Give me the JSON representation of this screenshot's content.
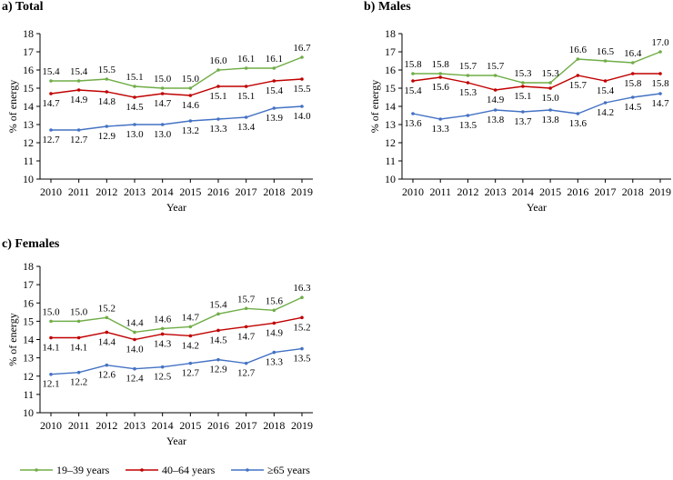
{
  "colors": {
    "19_39": "#70ad47",
    "40_64": "#c00000",
    "ge65": "#4472c4",
    "axis": "#000000"
  },
  "legend": [
    {
      "key": "19_39",
      "label": "19–39 years"
    },
    {
      "key": "40_64",
      "label": "40–64 years"
    },
    {
      "key": "ge65",
      "label": "≥65 years"
    }
  ],
  "chart_data": [
    {
      "type": "line",
      "title": "a) Total",
      "xlabel": "Year",
      "ylabel": "% of energy",
      "ylim": [
        10,
        18
      ],
      "yticks": [
        "10",
        "11",
        "12",
        "13",
        "14",
        "15",
        "16",
        "17",
        "18"
      ],
      "categories": [
        "2010",
        "2011",
        "2012",
        "2013",
        "2014",
        "2015",
        "2016",
        "2017",
        "2018",
        "2019"
      ],
      "grid": false,
      "series": [
        {
          "key": "19_39",
          "name": "19–39 years",
          "values": [
            15.4,
            15.4,
            15.5,
            15.1,
            15.0,
            15.0,
            16.0,
            16.1,
            16.1,
            16.7
          ],
          "labels": [
            "15.4",
            "15.4",
            "15.5",
            "15.1",
            "15.0",
            "15.0",
            "16.0",
            "16.1",
            "16.1",
            "16.7"
          ]
        },
        {
          "key": "40_64",
          "name": "40–64 years",
          "values": [
            14.7,
            14.9,
            14.8,
            14.5,
            14.7,
            14.6,
            15.1,
            15.1,
            15.4,
            15.5
          ],
          "labels": [
            "14.7",
            "14.9",
            "14.8",
            "14.5",
            "14.7",
            "14.6",
            "15.1",
            "15.1",
            "15.4",
            "15.5"
          ]
        },
        {
          "key": "ge65",
          "name": "≥65 years",
          "values": [
            12.7,
            12.7,
            12.9,
            13.0,
            13.0,
            13.2,
            13.3,
            13.4,
            13.9,
            14.0
          ],
          "labels": [
            "12.7",
            "12.7",
            "12.9",
            "13.0",
            "13.0",
            "13.2",
            "13.3",
            "13.4",
            "13.9",
            "14.0"
          ]
        }
      ]
    },
    {
      "type": "line",
      "title": "b) Males",
      "xlabel": "Year",
      "ylabel": "% of energy",
      "ylim": [
        10,
        18
      ],
      "yticks": [
        "10",
        "11",
        "12",
        "13",
        "14",
        "15",
        "16",
        "17",
        "18"
      ],
      "categories": [
        "2010",
        "2011",
        "2012",
        "2013",
        "2014",
        "2015",
        "2016",
        "2017",
        "2018",
        "2019"
      ],
      "grid": false,
      "series": [
        {
          "key": "19_39",
          "name": "19–39 years",
          "values": [
            15.8,
            15.8,
            15.7,
            15.7,
            15.3,
            15.3,
            16.6,
            16.5,
            16.4,
            17.0
          ],
          "labels": [
            "15.8",
            "15.8",
            "15.7",
            "15.7",
            "15.3",
            "15.3",
            "16.6",
            "16.5",
            "16.4",
            "17.0"
          ]
        },
        {
          "key": "40_64",
          "name": "40–64 years",
          "values": [
            15.4,
            15.6,
            15.3,
            14.9,
            15.1,
            15.0,
            15.7,
            15.4,
            15.8,
            15.8
          ],
          "labels": [
            "15.4",
            "15.6",
            "15.3",
            "14.9",
            "15.1",
            "15.0",
            "15.7",
            "15.4",
            "15.8",
            "15.8"
          ]
        },
        {
          "key": "ge65",
          "name": "≥65 years",
          "values": [
            13.6,
            13.3,
            13.5,
            13.8,
            13.7,
            13.8,
            13.6,
            14.2,
            14.5,
            14.7
          ],
          "labels": [
            "13.6",
            "13.3",
            "13.5",
            "13.8",
            "13.7",
            "13.8",
            "13.6",
            "14.2",
            "14.5",
            "14.7"
          ]
        }
      ]
    },
    {
      "type": "line",
      "title": "c) Females",
      "xlabel": "Year",
      "ylabel": "% of energy",
      "ylim": [
        10,
        18
      ],
      "yticks": [
        "10",
        "11",
        "12",
        "13",
        "14",
        "15",
        "16",
        "17",
        "18"
      ],
      "categories": [
        "2010",
        "2011",
        "2012",
        "2013",
        "2014",
        "2015",
        "2016",
        "2017",
        "2018",
        "2019"
      ],
      "grid": false,
      "series": [
        {
          "key": "19_39",
          "name": "19–39 years",
          "values": [
            15.0,
            15.0,
            15.2,
            14.4,
            14.6,
            14.7,
            15.4,
            15.7,
            15.6,
            16.3
          ],
          "labels": [
            "15.0",
            "15.0",
            "15.2",
            "14.4",
            "14.6",
            "14.7",
            "15.4",
            "15.7",
            "15.6",
            "16.3"
          ]
        },
        {
          "key": "40_64",
          "name": "40–64 years",
          "values": [
            14.1,
            14.1,
            14.4,
            14.0,
            14.3,
            14.2,
            14.5,
            14.7,
            14.9,
            15.2
          ],
          "labels": [
            "14.1",
            "14.1",
            "14.4",
            "14.0",
            "14.3",
            "14.2",
            "14.5",
            "14.7",
            "14.9",
            "15.2"
          ]
        },
        {
          "key": "ge65",
          "name": "≥65 years",
          "values": [
            12.1,
            12.2,
            12.6,
            12.4,
            12.5,
            12.7,
            12.9,
            12.7,
            13.3,
            13.5
          ],
          "labels": [
            "12.1",
            "12.2",
            "12.6",
            "12.4",
            "12.5",
            "12.7",
            "12.9",
            "12.7",
            "13.3",
            "13.5"
          ]
        }
      ]
    }
  ]
}
